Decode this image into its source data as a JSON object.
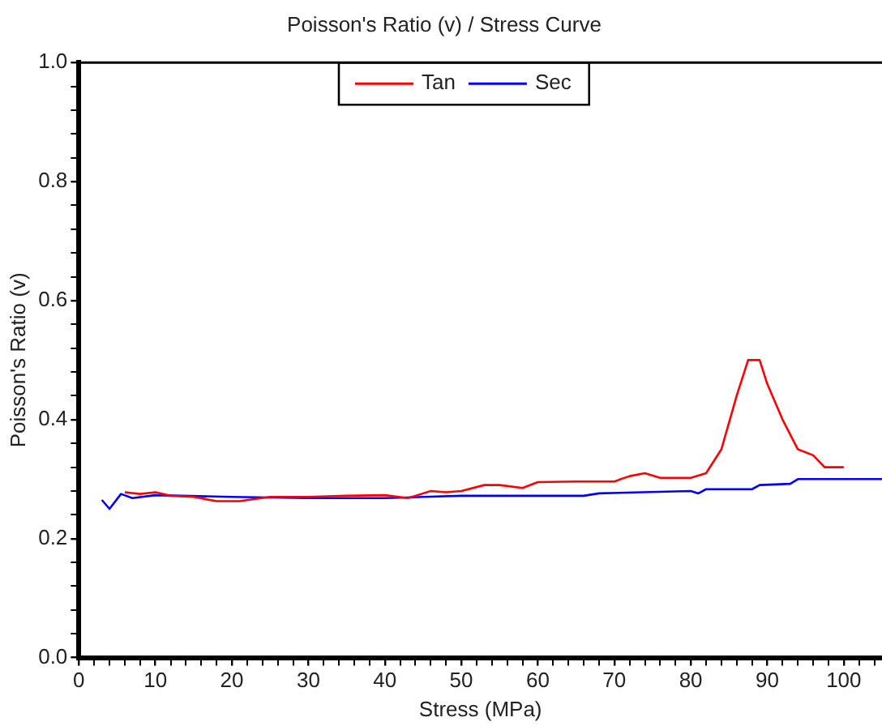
{
  "chart_data": {
    "type": "line",
    "title": "Poisson's Ratio (v) / Stress Curve",
    "xlabel": "Stress (MPa)",
    "ylabel": "Poisson's Ratio (v)",
    "xlim": [
      0,
      105
    ],
    "ylim": [
      0,
      1
    ],
    "xticks": [
      0,
      {
        "value": 2,
        "label": null
      },
      {
        "value": 4,
        "label": null
      },
      {
        "value": 6,
        "label": null
      },
      {
        "value": 8,
        "label": null
      },
      10,
      {
        "value": 12,
        "label": null
      },
      {
        "value": 14,
        "label": null
      },
      {
        "value": 16,
        "label": null
      },
      {
        "value": 18,
        "label": null
      },
      20,
      {
        "value": 22,
        "label": null
      },
      {
        "value": 24,
        "label": null
      },
      {
        "value": 26,
        "label": null
      },
      {
        "value": 28,
        "label": null
      },
      30,
      {
        "value": 32,
        "label": null
      },
      {
        "value": 34,
        "label": null
      },
      {
        "value": 36,
        "label": null
      },
      {
        "value": 38,
        "label": null
      },
      40,
      {
        "value": 42,
        "label": null
      },
      {
        "value": 44,
        "label": null
      },
      {
        "value": 46,
        "label": null
      },
      {
        "value": 48,
        "label": null
      },
      50,
      {
        "value": 52,
        "label": null
      },
      {
        "value": 54,
        "label": null
      },
      {
        "value": 56,
        "label": null
      },
      {
        "value": 58,
        "label": null
      },
      60,
      {
        "value": 62,
        "label": null
      },
      {
        "value": 64,
        "label": null
      },
      {
        "value": 66,
        "label": null
      },
      {
        "value": 68,
        "label": null
      },
      70,
      {
        "value": 72,
        "label": null
      },
      {
        "value": 74,
        "label": null
      },
      {
        "value": 76,
        "label": null
      },
      {
        "value": 78,
        "label": null
      },
      80,
      {
        "value": 82,
        "label": null
      },
      {
        "value": 84,
        "label": null
      },
      {
        "value": 86,
        "label": null
      },
      {
        "value": 88,
        "label": null
      },
      90,
      {
        "value": 92,
        "label": null
      },
      {
        "value": 94,
        "label": null
      },
      {
        "value": 96,
        "label": null
      },
      {
        "value": 98,
        "label": null
      },
      100,
      {
        "value": 102,
        "label": null
      },
      {
        "value": 104,
        "label": null
      }
    ],
    "yticks": [
      {
        "value": 0,
        "label": "0.0"
      },
      {
        "value": 0.04,
        "label": null
      },
      {
        "value": 0.08,
        "label": null
      },
      {
        "value": 0.12,
        "label": null
      },
      {
        "value": 0.16,
        "label": null
      },
      {
        "value": 0.2,
        "label": "0.2"
      },
      {
        "value": 0.24,
        "label": null
      },
      {
        "value": 0.28,
        "label": null
      },
      {
        "value": 0.32,
        "label": null
      },
      {
        "value": 0.36,
        "label": null
      },
      {
        "value": 0.4,
        "label": "0.4"
      },
      {
        "value": 0.44,
        "label": null
      },
      {
        "value": 0.48,
        "label": null
      },
      {
        "value": 0.52,
        "label": null
      },
      {
        "value": 0.56,
        "label": null
      },
      {
        "value": 0.6,
        "label": "0.6"
      },
      {
        "value": 0.64,
        "label": null
      },
      {
        "value": 0.68,
        "label": null
      },
      {
        "value": 0.72,
        "label": null
      },
      {
        "value": 0.76,
        "label": null
      },
      {
        "value": 0.8,
        "label": "0.8"
      },
      {
        "value": 0.84,
        "label": null
      },
      {
        "value": 0.88,
        "label": null
      },
      {
        "value": 0.92,
        "label": null
      },
      {
        "value": 0.96,
        "label": null
      },
      {
        "value": 1,
        "label": "1.0"
      }
    ],
    "grid": false,
    "legend": "top",
    "marker": "none",
    "line_style": "solid",
    "series": [
      {
        "name": "Tan",
        "color": "#ff0000",
        "x": [
          6,
          8,
          10,
          12,
          15,
          18,
          21,
          25,
          30,
          35,
          40,
          43,
          46,
          48,
          50,
          53,
          55,
          58,
          60,
          65,
          70,
          72,
          74,
          76,
          80,
          82,
          84,
          86,
          87.5,
          89,
          90,
          92,
          94,
          96,
          97.5,
          100
        ],
        "values": [
          0.278,
          0.275,
          0.278,
          0.272,
          0.27,
          0.263,
          0.263,
          0.27,
          0.27,
          0.272,
          0.273,
          0.268,
          0.28,
          0.278,
          0.28,
          0.29,
          0.29,
          0.285,
          0.295,
          0.296,
          0.296,
          0.305,
          0.31,
          0.302,
          0.302,
          0.31,
          0.35,
          0.44,
          0.5,
          0.5,
          0.46,
          0.4,
          0.35,
          0.34,
          0.32,
          0.32
        ]
      },
      {
        "name": "Sec",
        "color": "#0000ff",
        "x": [
          3,
          4,
          5.5,
          7,
          10,
          20,
          30,
          40,
          45,
          50,
          60,
          66,
          68,
          80,
          81,
          82,
          88,
          89,
          93,
          94,
          105
        ],
        "values": [
          0.265,
          0.25,
          0.275,
          0.268,
          0.273,
          0.27,
          0.268,
          0.268,
          0.27,
          0.272,
          0.272,
          0.272,
          0.276,
          0.28,
          0.276,
          0.283,
          0.283,
          0.29,
          0.292,
          0.3,
          0.3
        ]
      }
    ]
  }
}
